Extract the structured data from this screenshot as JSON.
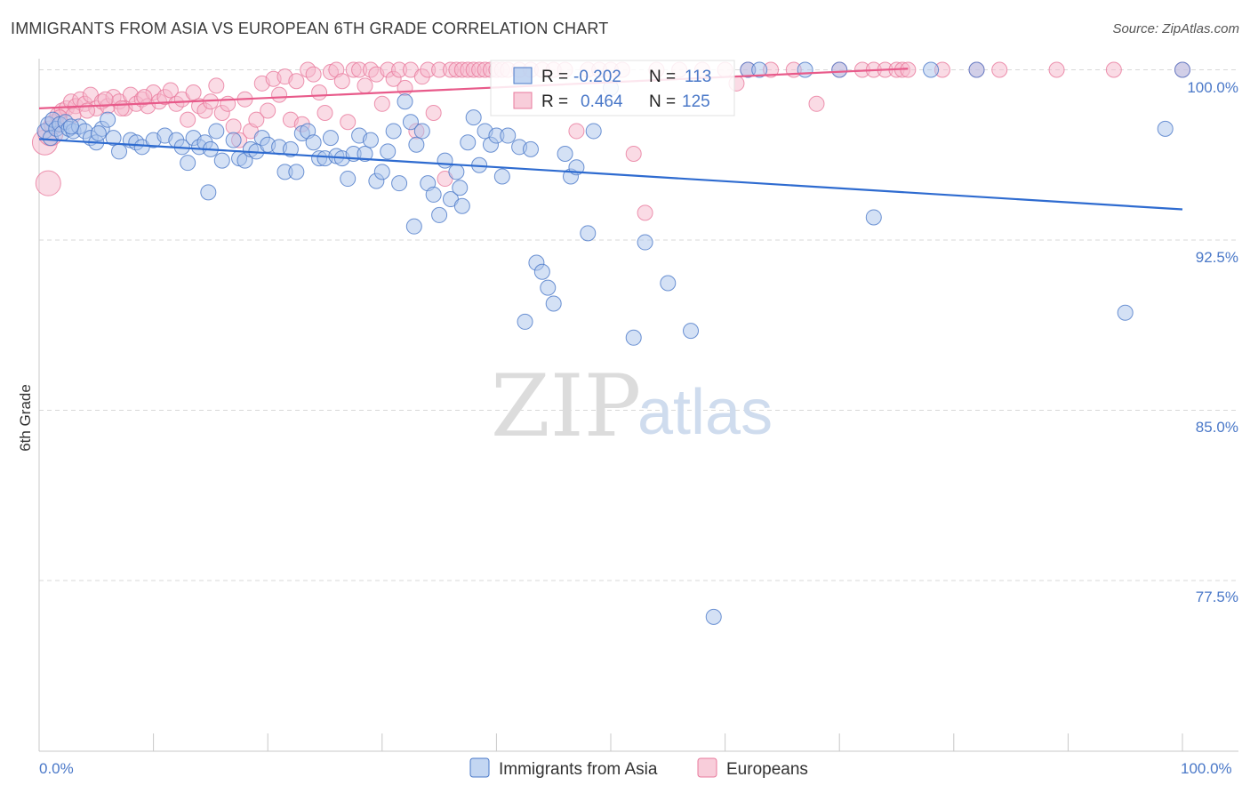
{
  "title": "IMMIGRANTS FROM ASIA VS EUROPEAN 6TH GRADE CORRELATION CHART",
  "source": "Source: ZipAtlas.com",
  "colors": {
    "blue": "#4a78c8",
    "blue_fill": "#a9c4ec",
    "blue_line": "#2e6bd0",
    "pink": "#e8799c",
    "pink_fill": "#f5b8cb",
    "pink_line": "#e85a8a",
    "grid": "#d8d8d8"
  },
  "watermark": {
    "zip": "ZIP",
    "atlas": "atlas"
  },
  "chart_data": {
    "type": "scatter",
    "title": "IMMIGRANTS FROM ASIA VS EUROPEAN 6TH GRADE CORRELATION CHART",
    "xlabel": "",
    "ylabel": "6th Grade",
    "xlim": [
      0,
      100
    ],
    "ylim": [
      71.0,
      100.6
    ],
    "x_tick_labels": [
      "0.0%",
      "100.0%"
    ],
    "y_ticks": [
      {
        "value": 100.0,
        "label": "100.0%"
      },
      {
        "value": 92.5,
        "label": "92.5%"
      },
      {
        "value": 85.0,
        "label": "85.0%"
      },
      {
        "value": 77.5,
        "label": "77.5%"
      }
    ],
    "grid": true,
    "legend_position": "bottom-center",
    "stats": [
      {
        "series": "Immigrants from Asia",
        "r_label": "R =",
        "r": "-0.202",
        "n_label": "N =",
        "n": "113"
      },
      {
        "series": "Europeans",
        "r_label": "R =",
        "r": "0.464",
        "n_label": "N =",
        "n": "125"
      }
    ],
    "series": [
      {
        "name": "Immigrants from Asia",
        "trend": {
          "x": [
            0,
            100
          ],
          "y": [
            96.95,
            93.85
          ]
        },
        "points": [
          [
            0.5,
            97.3
          ],
          [
            0.8,
            97.6
          ],
          [
            1.0,
            97.0
          ],
          [
            1.2,
            97.8
          ],
          [
            1.5,
            97.4
          ],
          [
            1.8,
            97.6
          ],
          [
            2.0,
            97.2
          ],
          [
            2.3,
            97.7
          ],
          [
            2.6,
            97.4
          ],
          [
            3.0,
            97.3
          ],
          [
            3.5,
            97.5
          ],
          [
            4.0,
            97.3
          ],
          [
            4.5,
            97.0
          ],
          [
            5.0,
            96.8
          ],
          [
            5.5,
            97.4
          ],
          [
            6.0,
            97.8
          ],
          [
            6.5,
            97.0
          ],
          [
            7.0,
            96.4
          ],
          [
            8.0,
            96.9
          ],
          [
            8.5,
            96.8
          ],
          [
            9.0,
            96.6
          ],
          [
            10.0,
            96.9
          ],
          [
            11.0,
            97.1
          ],
          [
            12.0,
            96.9
          ],
          [
            12.5,
            96.6
          ],
          [
            13.0,
            95.9
          ],
          [
            13.5,
            97.0
          ],
          [
            14.0,
            96.6
          ],
          [
            14.5,
            96.8
          ],
          [
            15.0,
            96.5
          ],
          [
            15.5,
            97.3
          ],
          [
            16.0,
            96.0
          ],
          [
            17.0,
            96.9
          ],
          [
            17.5,
            96.1
          ],
          [
            18.0,
            96.0
          ],
          [
            18.5,
            96.5
          ],
          [
            19.0,
            96.4
          ],
          [
            19.5,
            97.0
          ],
          [
            20.0,
            96.7
          ],
          [
            21.0,
            96.6
          ],
          [
            21.5,
            95.5
          ],
          [
            22.0,
            96.5
          ],
          [
            22.5,
            95.5
          ],
          [
            23.0,
            97.2
          ],
          [
            23.5,
            97.3
          ],
          [
            24.0,
            96.8
          ],
          [
            24.5,
            96.1
          ],
          [
            25.0,
            96.1
          ],
          [
            25.5,
            97.0
          ],
          [
            26.0,
            96.2
          ],
          [
            26.5,
            96.1
          ],
          [
            27.0,
            95.2
          ],
          [
            27.5,
            96.3
          ],
          [
            28.0,
            97.1
          ],
          [
            28.5,
            96.3
          ],
          [
            29.0,
            96.9
          ],
          [
            29.5,
            95.1
          ],
          [
            30.0,
            95.5
          ],
          [
            30.5,
            96.4
          ],
          [
            31.0,
            97.3
          ],
          [
            31.5,
            95.0
          ],
          [
            32.0,
            98.6
          ],
          [
            32.5,
            97.7
          ],
          [
            33.0,
            96.7
          ],
          [
            33.5,
            97.3
          ],
          [
            34.0,
            95.0
          ],
          [
            34.5,
            94.5
          ],
          [
            35.0,
            93.6
          ],
          [
            35.5,
            96.0
          ],
          [
            36.0,
            94.3
          ],
          [
            36.5,
            95.5
          ],
          [
            37.0,
            94.0
          ],
          [
            37.5,
            96.8
          ],
          [
            38.0,
            97.9
          ],
          [
            38.5,
            95.8
          ],
          [
            39.0,
            97.3
          ],
          [
            39.5,
            96.7
          ],
          [
            40.0,
            97.1
          ],
          [
            40.5,
            95.3
          ],
          [
            41.0,
            97.1
          ],
          [
            42.0,
            96.6
          ],
          [
            42.5,
            88.9
          ],
          [
            43.0,
            96.5
          ],
          [
            43.5,
            91.5
          ],
          [
            44.0,
            91.1
          ],
          [
            44.5,
            90.4
          ],
          [
            45.0,
            89.7
          ],
          [
            46.0,
            96.3
          ],
          [
            46.5,
            95.3
          ],
          [
            47.0,
            95.7
          ],
          [
            48.0,
            92.8
          ],
          [
            48.5,
            97.3
          ],
          [
            50.0,
            99.2
          ],
          [
            52.0,
            88.2
          ],
          [
            53.0,
            92.4
          ],
          [
            55.0,
            90.6
          ],
          [
            57.0,
            88.5
          ],
          [
            59.0,
            75.9
          ],
          [
            62.0,
            100.0
          ],
          [
            63.0,
            100.0
          ],
          [
            67.0,
            100.0
          ],
          [
            70.0,
            100.0
          ],
          [
            73.0,
            93.5
          ],
          [
            78.0,
            100.0
          ],
          [
            82.0,
            100.0
          ],
          [
            95.0,
            89.3
          ],
          [
            98.5,
            97.4
          ],
          [
            100.0,
            100.0
          ],
          [
            14.8,
            94.6
          ],
          [
            32.8,
            93.1
          ],
          [
            36.8,
            94.8
          ],
          [
            2.8,
            97.5
          ],
          [
            5.2,
            97.2
          ]
        ]
      },
      {
        "name": "Europeans",
        "trend": {
          "x": [
            0,
            76
          ],
          "y": [
            98.3,
            100.05
          ]
        },
        "points": [
          [
            0.5,
            96.8
          ],
          [
            0.8,
            95.0
          ],
          [
            1.0,
            97.2
          ],
          [
            1.3,
            97.6
          ],
          [
            1.6,
            98.0
          ],
          [
            2.0,
            98.2
          ],
          [
            2.4,
            98.3
          ],
          [
            2.8,
            98.6
          ],
          [
            3.2,
            98.4
          ],
          [
            3.6,
            98.7
          ],
          [
            4.0,
            98.5
          ],
          [
            4.5,
            98.9
          ],
          [
            5.0,
            98.3
          ],
          [
            5.5,
            98.6
          ],
          [
            6.0,
            98.4
          ],
          [
            6.5,
            98.8
          ],
          [
            7.0,
            98.6
          ],
          [
            7.5,
            98.3
          ],
          [
            8.0,
            98.9
          ],
          [
            8.5,
            98.5
          ],
          [
            9.0,
            98.7
          ],
          [
            9.5,
            98.4
          ],
          [
            10.0,
            99.0
          ],
          [
            10.5,
            98.6
          ],
          [
            11.0,
            98.8
          ],
          [
            11.5,
            99.1
          ],
          [
            12.0,
            98.5
          ],
          [
            12.5,
            98.7
          ],
          [
            13.0,
            97.8
          ],
          [
            13.5,
            99.0
          ],
          [
            14.0,
            98.4
          ],
          [
            14.5,
            98.2
          ],
          [
            15.0,
            98.6
          ],
          [
            15.5,
            99.3
          ],
          [
            16.0,
            98.1
          ],
          [
            16.5,
            98.5
          ],
          [
            17.0,
            97.5
          ],
          [
            17.5,
            96.9
          ],
          [
            18.0,
            98.7
          ],
          [
            18.5,
            97.3
          ],
          [
            19.0,
            97.8
          ],
          [
            19.5,
            99.4
          ],
          [
            20.0,
            98.2
          ],
          [
            20.5,
            99.6
          ],
          [
            21.0,
            98.9
          ],
          [
            21.5,
            99.7
          ],
          [
            22.0,
            97.8
          ],
          [
            22.5,
            99.5
          ],
          [
            23.0,
            97.6
          ],
          [
            23.5,
            100.0
          ],
          [
            24.0,
            99.8
          ],
          [
            24.5,
            99.0
          ],
          [
            25.0,
            98.1
          ],
          [
            25.5,
            99.9
          ],
          [
            26.0,
            100.0
          ],
          [
            26.5,
            99.5
          ],
          [
            27.0,
            97.7
          ],
          [
            27.5,
            100.0
          ],
          [
            28.0,
            100.0
          ],
          [
            28.5,
            99.3
          ],
          [
            29.0,
            100.0
          ],
          [
            29.5,
            99.8
          ],
          [
            30.0,
            98.5
          ],
          [
            30.5,
            100.0
          ],
          [
            31.0,
            99.6
          ],
          [
            31.5,
            100.0
          ],
          [
            32.0,
            99.2
          ],
          [
            32.5,
            100.0
          ],
          [
            33.0,
            97.3
          ],
          [
            33.5,
            99.7
          ],
          [
            34.0,
            100.0
          ],
          [
            34.5,
            98.1
          ],
          [
            35.0,
            100.0
          ],
          [
            35.5,
            95.2
          ],
          [
            36.0,
            100.0
          ],
          [
            36.5,
            100.0
          ],
          [
            37.0,
            100.0
          ],
          [
            37.5,
            100.0
          ],
          [
            38.0,
            100.0
          ],
          [
            38.5,
            100.0
          ],
          [
            39.0,
            100.0
          ],
          [
            39.5,
            100.0
          ],
          [
            40.0,
            100.0
          ],
          [
            40.5,
            100.0
          ],
          [
            41.0,
            100.0
          ],
          [
            42.0,
            100.0
          ],
          [
            43.0,
            100.0
          ],
          [
            44.0,
            100.0
          ],
          [
            45.0,
            100.0
          ],
          [
            46.0,
            100.0
          ],
          [
            47.0,
            97.3
          ],
          [
            48.0,
            100.0
          ],
          [
            49.0,
            100.0
          ],
          [
            50.0,
            100.0
          ],
          [
            51.0,
            100.0
          ],
          [
            52.0,
            96.3
          ],
          [
            53.0,
            93.7
          ],
          [
            54.0,
            100.0
          ],
          [
            56.0,
            100.0
          ],
          [
            58.0,
            100.0
          ],
          [
            60.0,
            100.0
          ],
          [
            61.0,
            99.4
          ],
          [
            62.0,
            100.0
          ],
          [
            64.0,
            100.0
          ],
          [
            66.0,
            100.0
          ],
          [
            68.0,
            98.5
          ],
          [
            70.0,
            100.0
          ],
          [
            72.0,
            100.0
          ],
          [
            73.0,
            100.0
          ],
          [
            74.0,
            100.0
          ],
          [
            75.0,
            100.0
          ],
          [
            75.5,
            100.0
          ],
          [
            76.0,
            100.0
          ],
          [
            79.0,
            100.0
          ],
          [
            82.0,
            100.0
          ],
          [
            84.0,
            100.0
          ],
          [
            89.0,
            100.0
          ],
          [
            94.0,
            100.0
          ],
          [
            100.0,
            100.0
          ],
          [
            1.8,
            97.9
          ],
          [
            3.0,
            98.0
          ],
          [
            4.2,
            98.2
          ],
          [
            5.8,
            98.7
          ],
          [
            7.2,
            98.3
          ],
          [
            9.2,
            98.8
          ]
        ]
      }
    ],
    "legend": [
      {
        "name": "Immigrants from Asia"
      },
      {
        "name": "Europeans"
      }
    ]
  }
}
